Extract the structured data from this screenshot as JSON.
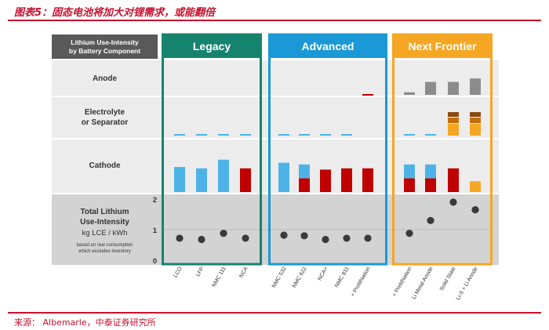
{
  "figure_title": "图表5：固态电池将加大对锂需求，或能翻倍",
  "source": "来源： Albemarle，中泰证券研究所",
  "colors": {
    "legacy": "#16836f",
    "advanced": "#1a99d6",
    "frontier": "#f5a623",
    "blue_bar": "#4db3e6",
    "red_bar": "#c00000",
    "gray_bar": "#8c8c8c",
    "orange_bar": "#f5a623",
    "dark_orange": "#c46d0a",
    "dot": "#3a3a3a",
    "band_light": "#ececec",
    "band_dark": "#d3d3d3",
    "header": "#595959"
  },
  "chart_data": {
    "type": "bar",
    "header_label": "Lithium Use-Intensity\nby Battery Component",
    "groups": [
      {
        "name": "Legacy",
        "color_key": "legacy",
        "categories": [
          "LCO",
          "LFP",
          "NMC 111",
          "NCA"
        ]
      },
      {
        "name": "Advanced",
        "color_key": "advanced",
        "categories": [
          "NMC 532",
          "NMC 622",
          "NCA+",
          "NMC 811",
          "+ Prelithiation"
        ]
      },
      {
        "name": "Next Frontier",
        "color_key": "frontier",
        "categories": [
          "+ Prelithiation",
          "Li Metal Anode",
          "Solid State",
          "Li-S + Li Anode"
        ]
      }
    ],
    "rows": [
      {
        "label": "Anode"
      },
      {
        "label": "Electrolyte\nor Separator"
      },
      {
        "label": "Cathode"
      },
      {
        "label": "Total Lithium\nUse-Intensity",
        "unit": "kg LCE / kWh",
        "note": "based on real consumption\nwhich excludes inventory"
      }
    ],
    "anode": [
      0,
      0,
      0,
      0,
      0,
      0,
      0,
      0,
      0.05,
      0.15,
      0.75,
      0.75,
      0.95
    ],
    "electrolyte": [
      {
        "blue": 1,
        "orange": 0,
        "brown": 0
      },
      {
        "blue": 1,
        "orange": 0,
        "brown": 0
      },
      {
        "blue": 1,
        "orange": 0,
        "brown": 0
      },
      {
        "blue": 1,
        "orange": 0,
        "brown": 0
      },
      {
        "blue": 1,
        "orange": 0,
        "brown": 0
      },
      {
        "blue": 1,
        "orange": 0,
        "brown": 0
      },
      {
        "blue": 1,
        "orange": 0,
        "brown": 0
      },
      {
        "blue": 1,
        "orange": 0,
        "brown": 0
      },
      {
        "blue": 0,
        "orange": 0,
        "brown": 0,
        "red": 1
      },
      {
        "blue": 1,
        "orange": 0,
        "brown": 0
      },
      {
        "blue": 1,
        "orange": 0,
        "brown": 0
      },
      {
        "blue": 0,
        "orange": 1,
        "brown": 1
      },
      {
        "blue": 0,
        "orange": 1,
        "brown": 1
      }
    ],
    "cathode": [
      {
        "blue": 0.58,
        "red": 0
      },
      {
        "blue": 0.55,
        "red": 0
      },
      {
        "blue": 0.75,
        "red": 0
      },
      {
        "blue": 0,
        "red": 0.55
      },
      {
        "blue": 0.68,
        "red": 0
      },
      {
        "blue": 0.32,
        "red": 0.32
      },
      {
        "blue": 0,
        "red": 0.52
      },
      {
        "blue": 0,
        "red": 0.55
      },
      {
        "blue": 0,
        "red": 0.55
      },
      {
        "blue": 0.32,
        "red": 0.32
      },
      {
        "blue": 0.32,
        "red": 0.32
      },
      {
        "blue": 0,
        "red": 0.55
      },
      {
        "blue": 0,
        "red": 0.25,
        "orange_only": true
      }
    ],
    "total": [
      0.72,
      0.68,
      0.88,
      0.72,
      0.82,
      0.8,
      0.68,
      0.72,
      0.72,
      0.88,
      1.3,
      1.9,
      1.65
    ],
    "ylim": [
      0,
      2
    ],
    "yticks": [
      0,
      1,
      2
    ]
  }
}
